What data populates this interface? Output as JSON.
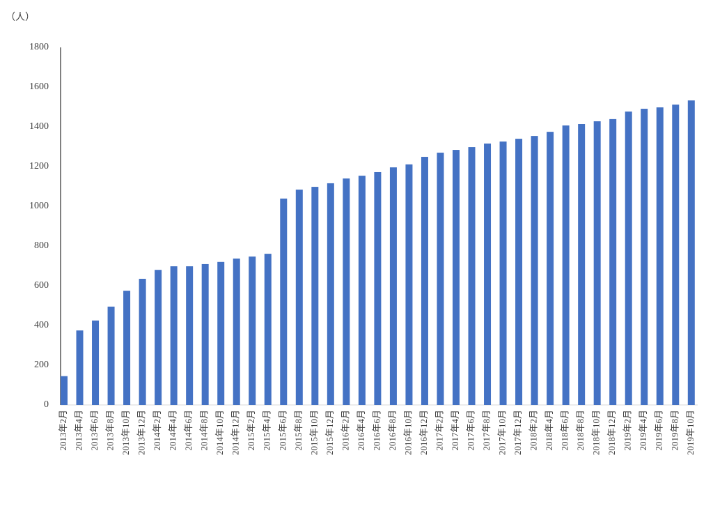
{
  "chart_data": {
    "type": "bar",
    "y_axis_label": "（人）",
    "categories": [
      "2013年2月",
      "2013年4月",
      "2013年6月",
      "2013年8月",
      "2013年10月",
      "2013年12月",
      "2014年2月",
      "2014年4月",
      "2014年6月",
      "2014年8月",
      "2014年10月",
      "2014年12月",
      "2015年2月",
      "2015年4月",
      "2015年6月",
      "2015年8月",
      "2015年10月",
      "2015年12月",
      "2016年2月",
      "2016年4月",
      "2016年6月",
      "2016年8月",
      "2016年10月",
      "2016年12月",
      "2017年2月",
      "2017年4月",
      "2017年6月",
      "2017年8月",
      "2017年10月",
      "2017年12月",
      "2018年2月",
      "2018年4月",
      "2018年6月",
      "2018年8月",
      "2018年10月",
      "2018年12月",
      "2019年2月",
      "2019年4月",
      "2019年6月",
      "2019年8月",
      "2019年10月"
    ],
    "values": [
      145,
      375,
      425,
      495,
      575,
      635,
      680,
      698,
      698,
      709,
      720,
      737,
      747,
      761,
      1039,
      1084,
      1098,
      1116,
      1140,
      1154,
      1172,
      1196,
      1211,
      1249,
      1270,
      1284,
      1298,
      1316,
      1326,
      1340,
      1354,
      1375,
      1407,
      1414,
      1428,
      1439,
      1477,
      1491,
      1498,
      1512,
      1533
    ],
    "color": "#4472c4",
    "ylim": [
      0,
      1800
    ],
    "yticks": [
      0,
      200,
      400,
      600,
      800,
      1000,
      1200,
      1400,
      1600,
      1800
    ],
    "grid": false
  }
}
